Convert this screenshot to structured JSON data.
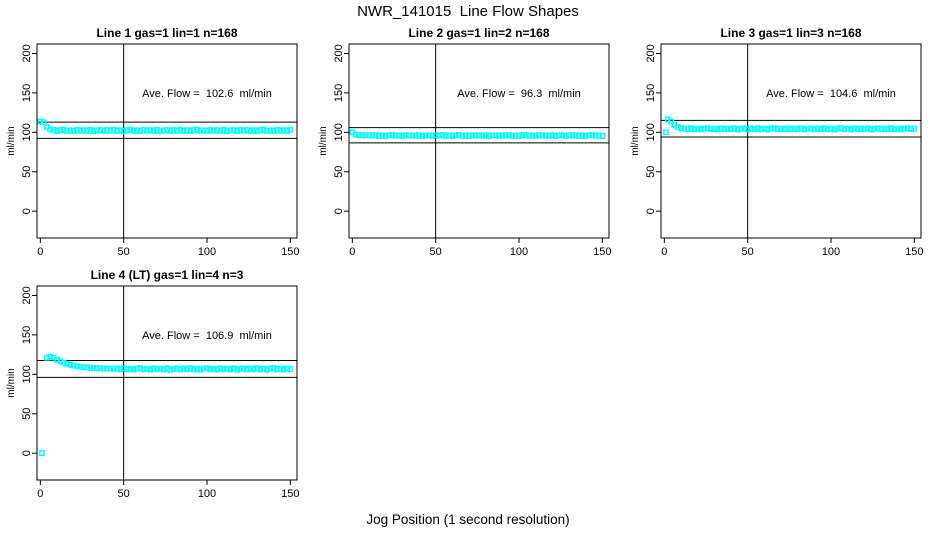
{
  "page_title": "NWR_141015  Line Flow Shapes",
  "x_axis_label": "Jog Position (1 second resolution)",
  "colors": {
    "points": "#00FFFF",
    "axis": "#000000",
    "background": "#FFFFFF"
  },
  "chart_data": [
    {
      "type": "scatter",
      "title": "Line 1 gas=1 lin=1 n=168",
      "line": 1,
      "gas": 1,
      "lin": 1,
      "n": 168,
      "annotation": "Ave. Flow =  102.6  ml/min",
      "ave_flow_ml_min": 102.6,
      "annotation_pos": [
        100,
        150
      ],
      "ylabel": "ml/min",
      "x_ticks": [
        0,
        50,
        100,
        150
      ],
      "y_ticks": [
        0,
        50,
        100,
        150,
        200
      ],
      "xlim": [
        -2,
        154
      ],
      "ylim": [
        -34,
        212
      ],
      "vline_x": 50,
      "hlines": [
        112.9,
        92.3
      ],
      "series": {
        "x_start": 0,
        "x_step": 2,
        "y": [
          113.6,
          112.9,
          106.8,
          103.9,
          103.1,
          101.5,
          102.9,
          103.4,
          101.9,
          102.6,
          101.6,
          103.1,
          102.1,
          102.8,
          101.8,
          103.2,
          101.4,
          102.5,
          102.9,
          101.7,
          103.0,
          102.0,
          103.3,
          101.7,
          102.7,
          101.5,
          102.9,
          103.4,
          101.9,
          102.6,
          101.6,
          103.1,
          102.1,
          102.8,
          101.8,
          103.2,
          101.4,
          102.5,
          102.9,
          101.7,
          103.0,
          102.0,
          103.3,
          101.7,
          102.7,
          101.5,
          102.9,
          103.4,
          101.9,
          102.6,
          101.6,
          103.1,
          102.1,
          102.8,
          101.8,
          103.2,
          101.4,
          102.5,
          102.9,
          101.7,
          103.0,
          102.0,
          103.3,
          101.7,
          102.7,
          101.5,
          102.9,
          103.4,
          101.9,
          102.6,
          101.6,
          103.1,
          102.1,
          102.8,
          101.8,
          103.2
        ]
      },
      "extra_points": []
    },
    {
      "type": "scatter",
      "title": "Line 2 gas=1 lin=2 n=168",
      "line": 2,
      "gas": 1,
      "lin": 2,
      "n": 168,
      "annotation": "Ave. Flow =  96.3  ml/min",
      "ave_flow_ml_min": 96.3,
      "annotation_pos": [
        100,
        150
      ],
      "ylabel": "ml/min",
      "x_ticks": [
        0,
        50,
        100,
        150
      ],
      "y_ticks": [
        0,
        50,
        100,
        150,
        200
      ],
      "xlim": [
        -2,
        154
      ],
      "ylim": [
        -34,
        212
      ],
      "vline_x": 50,
      "hlines": [
        105.9,
        86.7
      ],
      "series": {
        "x_start": 0,
        "x_step": 2,
        "y": [
          100.2,
          97.3,
          96.6,
          96.3,
          96.1,
          96.4,
          95.6,
          96.6,
          95.3,
          96.1,
          95.2,
          96.3,
          96.7,
          95.5,
          96.1,
          95.3,
          96.5,
          95.7,
          96.2,
          95.4,
          96.5,
          95.1,
          96.0,
          96.3,
          95.3,
          96.4,
          95.6,
          96.6,
          95.3,
          96.1,
          95.2,
          96.3,
          96.7,
          95.5,
          96.1,
          95.3,
          96.5,
          95.7,
          96.2,
          95.4,
          96.5,
          95.1,
          96.0,
          96.3,
          95.3,
          96.4,
          95.6,
          96.6,
          95.3,
          96.1,
          95.2,
          96.3,
          96.7,
          95.5,
          96.1,
          95.3,
          96.5,
          95.7,
          96.2,
          95.4,
          96.5,
          95.1,
          96.0,
          96.3,
          95.3,
          96.4,
          95.6,
          96.6,
          95.3,
          96.1,
          95.2,
          96.3,
          96.7,
          95.5,
          96.1,
          95.3
        ]
      },
      "extra_points": []
    },
    {
      "type": "scatter",
      "title": "Line 3 gas=1 lin=3 n=168",
      "line": 3,
      "gas": 1,
      "lin": 3,
      "n": 168,
      "annotation": "Ave. Flow =  104.6  ml/min",
      "ave_flow_ml_min": 104.6,
      "annotation_pos": [
        100,
        150
      ],
      "ylabel": "ml/min",
      "x_ticks": [
        0,
        50,
        100,
        150
      ],
      "y_ticks": [
        0,
        50,
        100,
        150,
        200
      ],
      "xlim": [
        -2,
        154
      ],
      "ylim": [
        -34,
        212
      ],
      "vline_x": 50,
      "hlines": [
        115.1,
        94.1
      ],
      "series": {
        "x_start": 2,
        "x_step": 2,
        "y": [
          116.4,
          113.8,
          109.6,
          106.8,
          105.4,
          104.9,
          104.0,
          105.2,
          103.8,
          104.7,
          103.6,
          104.9,
          105.3,
          104.0,
          104.6,
          103.7,
          105.0,
          104.1,
          104.8,
          103.9,
          105.1,
          103.5,
          104.5,
          104.9,
          103.8,
          104.9,
          104.0,
          105.2,
          103.8,
          104.7,
          103.6,
          104.9,
          105.3,
          104.0,
          104.6,
          103.7,
          105.0,
          104.1,
          104.8,
          103.9,
          105.1,
          103.5,
          104.5,
          104.9,
          103.8,
          104.9,
          104.0,
          105.2,
          103.8,
          104.7,
          103.6,
          104.9,
          105.3,
          104.0,
          104.6,
          103.7,
          105.0,
          104.1,
          104.8,
          103.9,
          105.1,
          103.5,
          104.5,
          104.9,
          103.8,
          104.9,
          104.0,
          105.2,
          103.8,
          104.7,
          103.6,
          104.9,
          105.3,
          104.0,
          104.6
        ]
      },
      "extra_points": [
        [
          1,
          100.0
        ]
      ]
    },
    {
      "type": "scatter",
      "title": "Line 4 (LT) gas=1 lin=4 n=3",
      "line": 4,
      "gas": 1,
      "lin": 4,
      "n": 3,
      "annotation": "Ave. Flow =  106.9  ml/min",
      "ave_flow_ml_min": 106.9,
      "annotation_pos": [
        100,
        150
      ],
      "ylabel": "ml/min",
      "x_ticks": [
        0,
        50,
        100,
        150
      ],
      "y_ticks": [
        0,
        50,
        100,
        150,
        200
      ],
      "xlim": [
        -2,
        154
      ],
      "ylim": [
        -34,
        212
      ],
      "vline_x": 50,
      "hlines": [
        117.6,
        96.2
      ],
      "series": {
        "x_start": 4,
        "x_step": 2,
        "y": [
          121.0,
          122.5,
          121.2,
          118.6,
          116.6,
          114.9,
          113.4,
          112.1,
          111.1,
          110.3,
          109.6,
          109.1,
          108.6,
          108.3,
          108.0,
          107.8,
          107.6,
          107.4,
          107.3,
          107.2,
          107.1,
          107.5,
          106.4,
          107.8,
          106.0,
          107.1,
          105.8,
          107.4,
          107.9,
          106.2,
          107.0,
          105.9,
          107.6,
          106.5,
          107.2,
          106.1,
          107.7,
          105.7,
          106.9,
          107.4,
          106.0,
          107.5,
          106.4,
          107.8,
          106.0,
          107.1,
          105.8,
          107.4,
          107.9,
          106.2,
          107.0,
          105.9,
          107.6,
          106.5,
          107.2,
          106.1,
          107.7,
          105.7,
          106.9,
          107.4,
          106.0,
          107.5,
          106.4,
          107.8,
          106.0,
          107.1,
          105.8,
          107.4,
          107.9,
          106.2,
          107.0,
          105.9,
          107.6,
          106.5
        ]
      },
      "extra_points": [
        [
          1,
          0.0
        ]
      ]
    }
  ]
}
